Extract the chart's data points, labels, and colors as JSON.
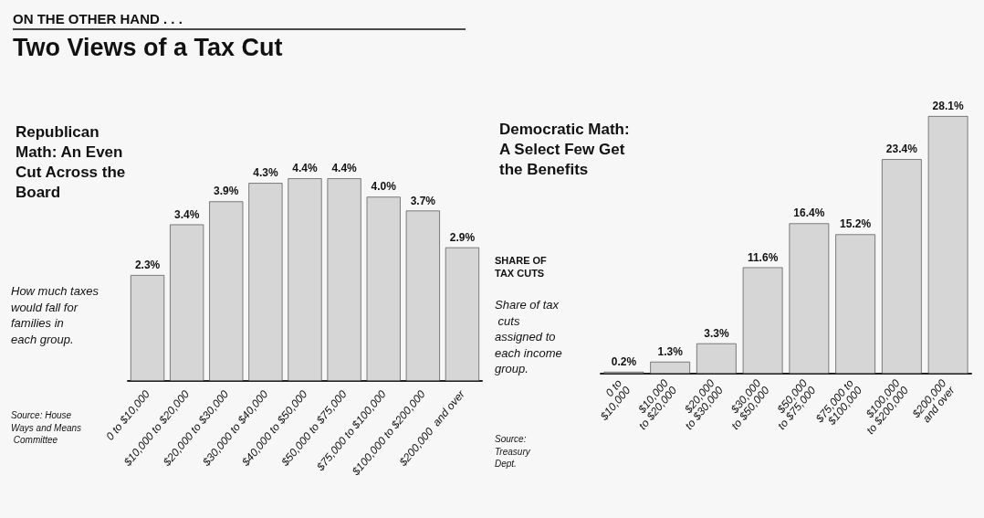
{
  "chart_data": [
    {
      "type": "bar",
      "title": "Republican Math: An Even Cut Across the Board",
      "annotations": [
        "ON THE OTHER HAND . . .",
        "Two Views of a Tax Cut",
        "How much taxes would fall for families in each group.",
        "Source: House Ways and Means Committee"
      ],
      "categories": [
        "0 to $10,000",
        "$10,000 to $20,000",
        "$20,000 to $30,000",
        "$30,000 to $40,000",
        "$40,000 to $50,000",
        "$50,000 to $75,000",
        "$75,000 to $100,000",
        "$100,000 to $200,000",
        "$200,000  and over"
      ],
      "values": [
        2.3,
        3.4,
        3.9,
        4.3,
        4.4,
        4.4,
        4.0,
        3.7,
        2.9
      ],
      "value_labels": [
        "2.3%",
        "3.4%",
        "3.9%",
        "4.3%",
        "4.4%",
        "4.4%",
        "4.0%",
        "3.7%",
        "2.9%"
      ],
      "color": "#d6d6d6"
    },
    {
      "type": "bar",
      "title": "Democratic Math: A Select Few Get the Benefits",
      "ylabel": "SHARE OF TAX CUTS",
      "annotations": [
        "Share of tax cuts assigned to each income group.",
        "Source: Treasury Dept."
      ],
      "categories": [
        "0 to $10,000",
        "$10,000 to $20,000",
        "$20,000 to $30,000",
        "$30,000 to $50,000",
        "$50,000 to $75,000",
        "$75,000 to $100,000",
        "$100,000 to $200,000",
        "$200,000 and over"
      ],
      "values": [
        0.2,
        1.3,
        3.3,
        11.6,
        16.4,
        15.2,
        23.4,
        28.1
      ],
      "value_labels": [
        "0.2%",
        "1.3%",
        "3.3%",
        "11.6%",
        "16.4%",
        "15.2%",
        "23.4%",
        "28.1%"
      ],
      "color": "#d6d6d6"
    }
  ]
}
